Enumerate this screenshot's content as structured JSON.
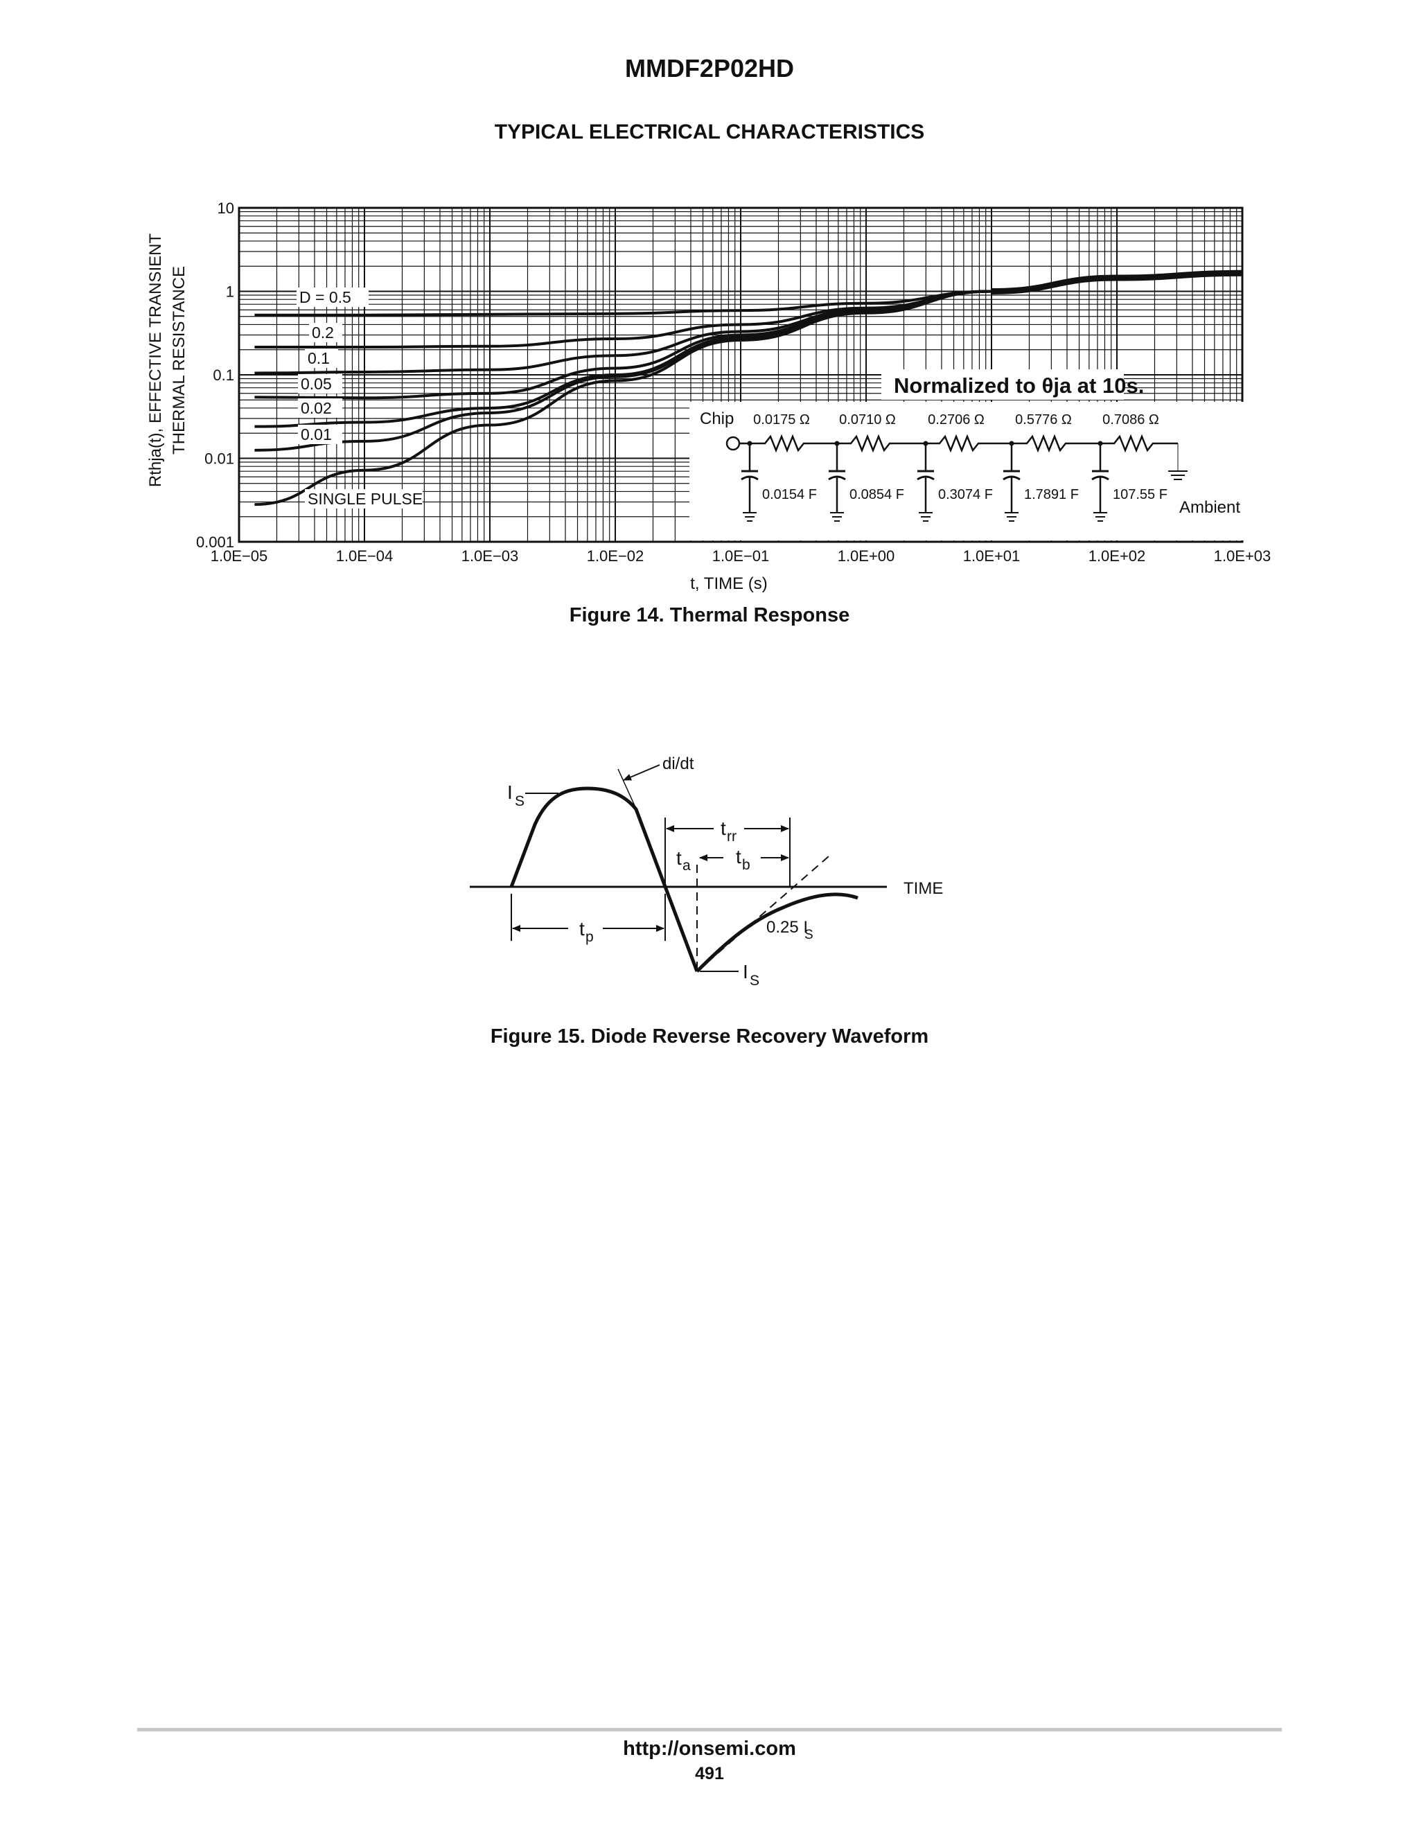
{
  "header": {
    "part_number": "MMDF2P02HD",
    "section_title": "TYPICAL ELECTRICAL CHARACTERISTICS"
  },
  "figure14": {
    "caption": "Figure 14. Thermal Response",
    "note": "Normalized to θja at 10s.",
    "chart_data": {
      "type": "line",
      "xlabel": "t, TIME (s)",
      "ylabel_line1": "Rthja(t), EFFECTIVE TRANSIENT",
      "ylabel_line2": "THERMAL RESISTANCE",
      "x_scale": "log",
      "y_scale": "log",
      "xlim": [
        1e-05,
        1000
      ],
      "ylim": [
        0.001,
        10
      ],
      "x_ticks": [
        "1.0E−05",
        "1.0E−04",
        "1.0E−03",
        "1.0E−02",
        "1.0E−01",
        "1.0E+00",
        "1.0E+01",
        "1.0E+02",
        "1.0E+03"
      ],
      "y_ticks": [
        "10",
        "1",
        "0.1",
        "0.01",
        "0.001"
      ],
      "grid": true,
      "series": [
        {
          "name": "D = 0.5",
          "x": [
            1.33e-05,
            0.0001,
            0.001,
            0.01,
            0.1,
            1,
            10,
            100,
            1000
          ],
          "y": [
            0.52,
            0.52,
            0.53,
            0.54,
            0.59,
            0.72,
            1.0,
            1.45,
            1.65
          ]
        },
        {
          "name": "0.2",
          "x": [
            1.33e-05,
            0.0001,
            0.001,
            0.01,
            0.1,
            1,
            10,
            100,
            1000
          ],
          "y": [
            0.215,
            0.215,
            0.22,
            0.27,
            0.4,
            0.63,
            1.0,
            1.45,
            1.65
          ]
        },
        {
          "name": "0.1",
          "x": [
            1.33e-05,
            0.0001,
            0.001,
            0.01,
            0.1,
            1,
            10,
            100,
            1000
          ],
          "y": [
            0.105,
            0.108,
            0.115,
            0.17,
            0.33,
            0.6,
            1.0,
            1.45,
            1.65
          ]
        },
        {
          "name": "0.05",
          "x": [
            1.33e-05,
            0.0001,
            0.001,
            0.01,
            0.1,
            1,
            10,
            100,
            1000
          ],
          "y": [
            0.054,
            0.053,
            0.06,
            0.12,
            0.3,
            0.58,
            1.0,
            1.45,
            1.65
          ]
        },
        {
          "name": "0.02",
          "x": [
            1.33e-05,
            0.0001,
            0.001,
            0.01,
            0.1,
            1,
            10,
            100,
            1000
          ],
          "y": [
            0.024,
            0.027,
            0.04,
            0.1,
            0.28,
            0.57,
            1.0,
            1.45,
            1.65
          ]
        },
        {
          "name": "0.01",
          "x": [
            1.33e-05,
            0.0001,
            0.001,
            0.01,
            0.1,
            1,
            10,
            100,
            1000
          ],
          "y": [
            0.0125,
            0.016,
            0.035,
            0.095,
            0.27,
            0.56,
            1.0,
            1.45,
            1.65
          ]
        },
        {
          "name": "SINGLE PULSE",
          "x": [
            1.33e-05,
            0.0001,
            0.001,
            0.01,
            0.1,
            1,
            10,
            100,
            1000
          ],
          "y": [
            0.0028,
            0.0072,
            0.025,
            0.085,
            0.26,
            0.55,
            1.0,
            1.45,
            1.65
          ]
        }
      ]
    },
    "network": {
      "chip_label": "Chip",
      "ambient_label": "Ambient",
      "resistors": [
        "0.0175 Ω",
        "0.0710 Ω",
        "0.2706 Ω",
        "0.5776 Ω",
        "0.7086 Ω"
      ],
      "capacitors": [
        "0.0154 F",
        "0.0854 F",
        "0.3074 F",
        "1.7891 F",
        "107.55 F"
      ]
    }
  },
  "figure15": {
    "caption": "Figure 15. Diode Reverse Recovery Waveform",
    "labels": {
      "didt": "di/dt",
      "is_main": "I",
      "is_sub": "S",
      "trr_main": "t",
      "trr_sub": "rr",
      "ta_main": "t",
      "ta_sub": "a",
      "tb_main": "t",
      "tb_sub": "b",
      "tp_main": "t",
      "tp_sub": "p",
      "time": "TIME",
      "quarter_is": "0.25 I",
      "quarter_sub": "S",
      "is_bottom_main": "I",
      "is_bottom_sub": "S"
    }
  },
  "footer": {
    "url": "http://onsemi.com",
    "page": "491"
  }
}
